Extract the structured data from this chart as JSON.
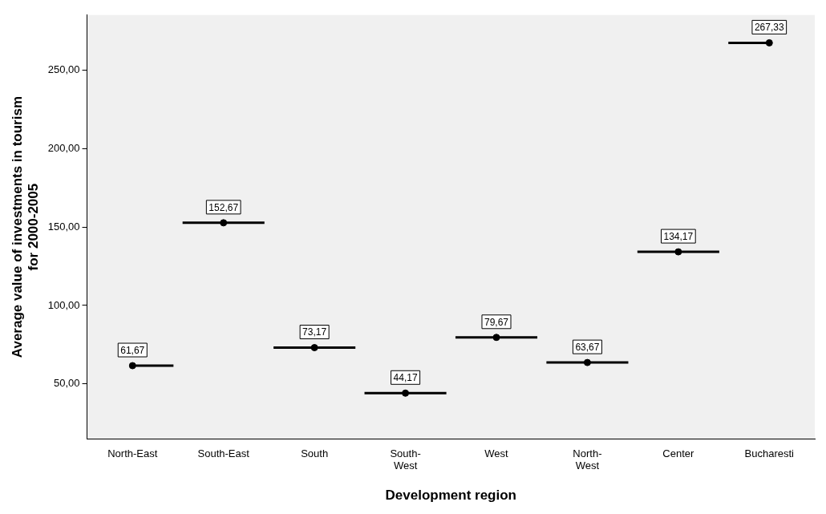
{
  "chart_data": {
    "type": "scatter",
    "xlabel": "Development region",
    "ylabel": "Average value of investments in tourism\nfor 2000-2005",
    "categories": [
      "North-East",
      "South-East",
      "South",
      "South-\nWest",
      "West",
      "North-\nWest",
      "Center",
      "Bucharesti"
    ],
    "series": [
      {
        "color": "#000000",
        "marker": "circle",
        "values": [
          61.67,
          152.67,
          73.17,
          44.17,
          79.67,
          63.67,
          134.17,
          267.33
        ],
        "value_labels": [
          "61,67",
          "152,67",
          "73,17",
          "44,17",
          "79,67",
          "63,67",
          "134,17",
          "267,33"
        ]
      },
      {
        "type": "step",
        "color": "#000000",
        "marker": "none",
        "values": [
          61.67,
          152.67,
          73.17,
          44.17,
          79.67,
          63.67,
          134.17,
          267.33
        ]
      }
    ],
    "grid": false,
    "legend": false,
    "ylim": [
      15,
      285
    ],
    "yticks": [
      {
        "value": 50,
        "label": "50,00"
      },
      {
        "value": 100,
        "label": "100,00"
      },
      {
        "value": 150,
        "label": "150,00"
      },
      {
        "value": 200,
        "label": "200,00"
      },
      {
        "value": 250,
        "label": "250,00"
      }
    ]
  }
}
